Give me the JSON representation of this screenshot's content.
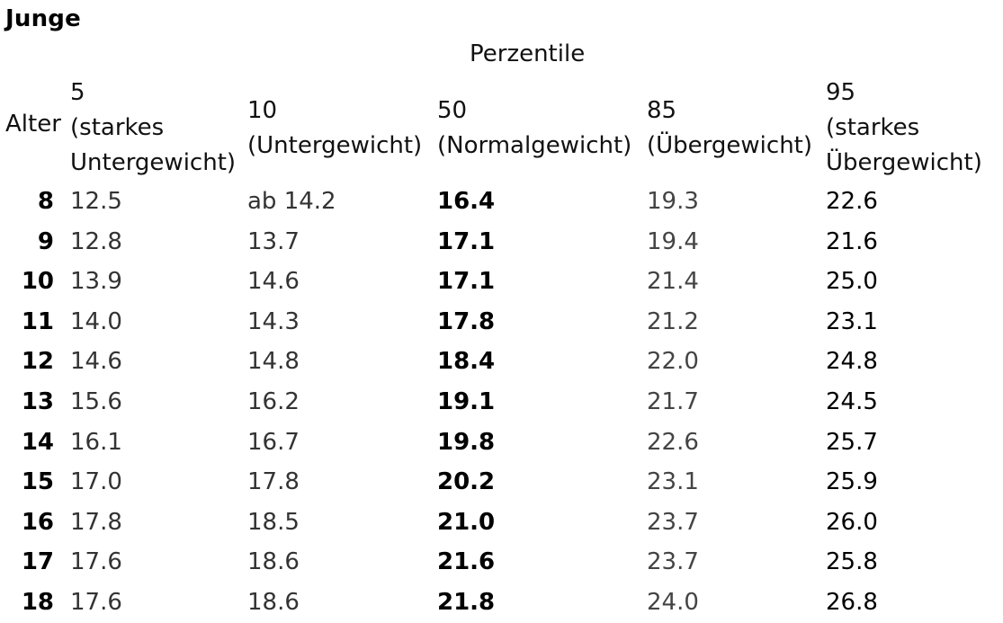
{
  "title": "Junge",
  "group_header": "Perzentile",
  "age_header": "Alter",
  "columns": [
    "5\n(starkes\nUntergewicht)",
    "10\n(Untergewicht)",
    "50\n(Normalgewicht)",
    "85\n(Übergewicht)",
    "95\n(starkes\nÜbergewicht)"
  ],
  "rows": [
    {
      "age": "8",
      "p5": "12.5",
      "p10": "ab 14.2",
      "p50": "16.4",
      "p85": "19.3",
      "p95": "22.6"
    },
    {
      "age": "9",
      "p5": "12.8",
      "p10": "13.7",
      "p50": "17.1",
      "p85": "19.4",
      "p95": "21.6"
    },
    {
      "age": "10",
      "p5": "13.9",
      "p10": "14.6",
      "p50": "17.1",
      "p85": "21.4",
      "p95": "25.0"
    },
    {
      "age": "11",
      "p5": "14.0",
      "p10": "14.3",
      "p50": "17.8",
      "p85": "21.2",
      "p95": "23.1"
    },
    {
      "age": "12",
      "p5": "14.6",
      "p10": "14.8",
      "p50": "18.4",
      "p85": "22.0",
      "p95": "24.8"
    },
    {
      "age": "13",
      "p5": "15.6",
      "p10": "16.2",
      "p50": "19.1",
      "p85": "21.7",
      "p95": "24.5"
    },
    {
      "age": "14",
      "p5": "16.1",
      "p10": "16.7",
      "p50": "19.8",
      "p85": "22.6",
      "p95": "25.7"
    },
    {
      "age": "15",
      "p5": "17.0",
      "p10": "17.8",
      "p50": "20.2",
      "p85": "23.1",
      "p95": "25.9"
    },
    {
      "age": "16",
      "p5": "17.8",
      "p10": "18.5",
      "p50": "21.0",
      "p85": "23.7",
      "p95": "26.0"
    },
    {
      "age": "17",
      "p5": "17.6",
      "p10": "18.6",
      "p50": "21.6",
      "p85": "23.7",
      "p95": "25.8"
    },
    {
      "age": "18",
      "p5": "17.6",
      "p10": "18.6",
      "p50": "21.8",
      "p85": "24.0",
      "p95": "26.8"
    }
  ]
}
